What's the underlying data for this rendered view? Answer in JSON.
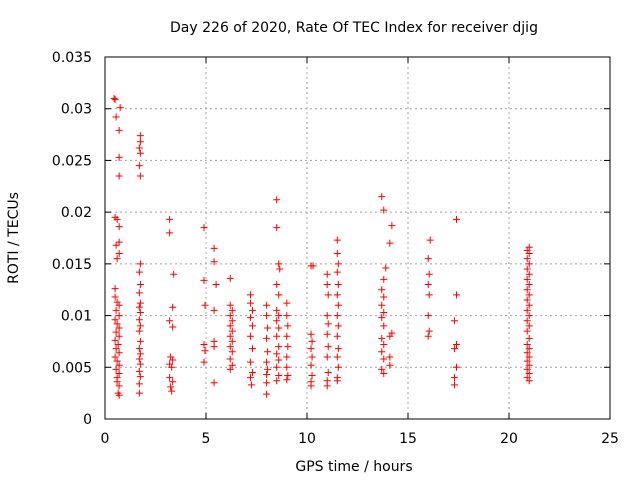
{
  "chart_data": {
    "type": "scatter",
    "title": "Day 226 of 2020, Rate Of TEC Index for receiver djig",
    "xlabel": "GPS time / hours",
    "ylabel": "ROTI / TECUs",
    "xlim": [
      0,
      25
    ],
    "ylim": [
      0,
      0.035
    ],
    "xticks": [
      0,
      5,
      10,
      15,
      20,
      25
    ],
    "xtick_labels": [
      "0",
      "5",
      "10",
      "15",
      "20",
      "25"
    ],
    "yticks": [
      0,
      0.005,
      0.01,
      0.015,
      0.02,
      0.025,
      0.03,
      0.035
    ],
    "ytick_labels": [
      "0",
      "0.005",
      "0.01",
      "0.015",
      "0.02",
      "0.025",
      "0.03",
      "0.035"
    ],
    "grid": true,
    "marker": "plus",
    "color": "#ff0000",
    "series": [
      {
        "name": "ROTI",
        "points": [
          [
            0.45,
            0.031
          ],
          [
            0.5,
            0.0309
          ],
          [
            0.55,
            0.0292
          ],
          [
            0.75,
            0.0301
          ],
          [
            0.7,
            0.0279
          ],
          [
            0.7,
            0.0253
          ],
          [
            0.7,
            0.0235
          ],
          [
            0.5,
            0.0195
          ],
          [
            0.6,
            0.0193
          ],
          [
            0.7,
            0.0186
          ],
          [
            0.55,
            0.0168
          ],
          [
            0.7,
            0.0171
          ],
          [
            0.7,
            0.016
          ],
          [
            0.6,
            0.0155
          ],
          [
            0.5,
            0.0126
          ],
          [
            0.5,
            0.0118
          ],
          [
            0.6,
            0.0113
          ],
          [
            0.7,
            0.011
          ],
          [
            0.55,
            0.0105
          ],
          [
            0.7,
            0.01
          ],
          [
            0.5,
            0.0096
          ],
          [
            0.6,
            0.0092
          ],
          [
            0.7,
            0.0088
          ],
          [
            0.55,
            0.0084
          ],
          [
            0.7,
            0.008
          ],
          [
            0.5,
            0.0076
          ],
          [
            0.65,
            0.0072
          ],
          [
            0.55,
            0.0068
          ],
          [
            0.7,
            0.0064
          ],
          [
            0.5,
            0.006
          ],
          [
            0.6,
            0.0056
          ],
          [
            0.7,
            0.0052
          ],
          [
            0.55,
            0.0048
          ],
          [
            0.7,
            0.0044
          ],
          [
            0.6,
            0.004
          ],
          [
            0.6,
            0.0036
          ],
          [
            0.7,
            0.0032
          ],
          [
            0.65,
            0.0025
          ],
          [
            0.7,
            0.0023
          ],
          [
            1.75,
            0.0274
          ],
          [
            1.75,
            0.0268
          ],
          [
            1.7,
            0.0262
          ],
          [
            1.75,
            0.0257
          ],
          [
            1.7,
            0.0245
          ],
          [
            1.75,
            0.0235
          ],
          [
            1.75,
            0.015
          ],
          [
            1.7,
            0.0142
          ],
          [
            1.75,
            0.013
          ],
          [
            1.7,
            0.0122
          ],
          [
            1.75,
            0.0112
          ],
          [
            1.7,
            0.0108
          ],
          [
            1.75,
            0.0103
          ],
          [
            1.7,
            0.0096
          ],
          [
            1.75,
            0.009
          ],
          [
            1.7,
            0.0085
          ],
          [
            1.75,
            0.0075
          ],
          [
            1.7,
            0.0068
          ],
          [
            1.75,
            0.0063
          ],
          [
            1.7,
            0.0058
          ],
          [
            1.75,
            0.0053
          ],
          [
            1.7,
            0.0046
          ],
          [
            1.75,
            0.0041
          ],
          [
            1.7,
            0.0034
          ],
          [
            1.7,
            0.0025
          ],
          [
            3.2,
            0.0193
          ],
          [
            3.2,
            0.018
          ],
          [
            3.4,
            0.014
          ],
          [
            3.35,
            0.0108
          ],
          [
            3.2,
            0.0095
          ],
          [
            3.35,
            0.0089
          ],
          [
            3.25,
            0.006
          ],
          [
            3.35,
            0.0057
          ],
          [
            3.2,
            0.0053
          ],
          [
            3.3,
            0.005
          ],
          [
            3.2,
            0.004
          ],
          [
            3.35,
            0.0036
          ],
          [
            3.25,
            0.0031
          ],
          [
            3.3,
            0.0027
          ],
          [
            4.9,
            0.0185
          ],
          [
            4.9,
            0.0134
          ],
          [
            4.95,
            0.011
          ],
          [
            4.9,
            0.0072
          ],
          [
            4.95,
            0.0066
          ],
          [
            4.9,
            0.0055
          ],
          [
            5.4,
            0.0165
          ],
          [
            5.4,
            0.0152
          ],
          [
            5.5,
            0.013
          ],
          [
            5.4,
            0.0105
          ],
          [
            5.4,
            0.0075
          ],
          [
            5.4,
            0.007
          ],
          [
            5.4,
            0.0035
          ],
          [
            6.2,
            0.0136
          ],
          [
            6.2,
            0.011
          ],
          [
            6.3,
            0.0105
          ],
          [
            6.2,
            0.01
          ],
          [
            6.3,
            0.0095
          ],
          [
            6.2,
            0.009
          ],
          [
            6.3,
            0.0085
          ],
          [
            6.2,
            0.008
          ],
          [
            6.3,
            0.0075
          ],
          [
            6.2,
            0.007
          ],
          [
            6.3,
            0.0065
          ],
          [
            6.2,
            0.0058
          ],
          [
            6.3,
            0.0052
          ],
          [
            6.2,
            0.0048
          ],
          [
            7.2,
            0.012
          ],
          [
            7.2,
            0.0112
          ],
          [
            7.3,
            0.0105
          ],
          [
            7.2,
            0.0098
          ],
          [
            7.3,
            0.009
          ],
          [
            7.2,
            0.008
          ],
          [
            7.3,
            0.0068
          ],
          [
            7.2,
            0.0055
          ],
          [
            7.3,
            0.0045
          ],
          [
            7.2,
            0.004
          ],
          [
            7.25,
            0.0033
          ],
          [
            8.0,
            0.011
          ],
          [
            8.0,
            0.01
          ],
          [
            8.05,
            0.0088
          ],
          [
            8.0,
            0.0078
          ],
          [
            8.05,
            0.0065
          ],
          [
            8.0,
            0.0055
          ],
          [
            8.05,
            0.0048
          ],
          [
            8.0,
            0.0043
          ],
          [
            8.0,
            0.0035
          ],
          [
            8.0,
            0.0024
          ],
          [
            8.5,
            0.0212
          ],
          [
            8.5,
            0.0185
          ],
          [
            8.6,
            0.015
          ],
          [
            8.65,
            0.0145
          ],
          [
            8.5,
            0.013
          ],
          [
            8.6,
            0.012
          ],
          [
            8.5,
            0.0105
          ],
          [
            8.6,
            0.01
          ],
          [
            8.5,
            0.0095
          ],
          [
            8.6,
            0.0088
          ],
          [
            8.5,
            0.008
          ],
          [
            8.6,
            0.007
          ],
          [
            8.5,
            0.0063
          ],
          [
            8.6,
            0.0057
          ],
          [
            8.5,
            0.005
          ],
          [
            8.6,
            0.0042
          ],
          [
            8.5,
            0.0037
          ],
          [
            9.0,
            0.0112
          ],
          [
            9.0,
            0.01
          ],
          [
            9.05,
            0.009
          ],
          [
            9.0,
            0.008
          ],
          [
            9.05,
            0.007
          ],
          [
            9.0,
            0.006
          ],
          [
            9.0,
            0.005
          ],
          [
            9.05,
            0.0042
          ],
          [
            9.0,
            0.0038
          ],
          [
            10.2,
            0.0148
          ],
          [
            10.3,
            0.0148
          ],
          [
            10.2,
            0.0082
          ],
          [
            10.25,
            0.0075
          ],
          [
            10.2,
            0.0068
          ],
          [
            10.25,
            0.006
          ],
          [
            10.2,
            0.0052
          ],
          [
            10.25,
            0.0042
          ],
          [
            10.2,
            0.0036
          ],
          [
            10.2,
            0.0032
          ],
          [
            11.0,
            0.014
          ],
          [
            11.0,
            0.013
          ],
          [
            11.05,
            0.012
          ],
          [
            11.0,
            0.01
          ],
          [
            11.05,
            0.0092
          ],
          [
            11.0,
            0.0082
          ],
          [
            11.05,
            0.007
          ],
          [
            11.0,
            0.006
          ],
          [
            11.05,
            0.0045
          ],
          [
            11.0,
            0.0037
          ],
          [
            11.0,
            0.0032
          ],
          [
            11.5,
            0.0173
          ],
          [
            11.5,
            0.016
          ],
          [
            11.55,
            0.015
          ],
          [
            11.5,
            0.0142
          ],
          [
            11.55,
            0.013
          ],
          [
            11.5,
            0.012
          ],
          [
            11.55,
            0.011
          ],
          [
            11.5,
            0.01
          ],
          [
            11.55,
            0.009
          ],
          [
            11.5,
            0.008
          ],
          [
            11.55,
            0.0068
          ],
          [
            11.5,
            0.006
          ],
          [
            11.55,
            0.005
          ],
          [
            11.5,
            0.004
          ],
          [
            11.5,
            0.0037
          ],
          [
            13.7,
            0.0215
          ],
          [
            13.8,
            0.0202
          ],
          [
            14.2,
            0.0187
          ],
          [
            14.1,
            0.017
          ],
          [
            13.9,
            0.0146
          ],
          [
            13.8,
            0.0135
          ],
          [
            13.7,
            0.0125
          ],
          [
            13.8,
            0.0118
          ],
          [
            13.7,
            0.011
          ],
          [
            13.8,
            0.0103
          ],
          [
            13.7,
            0.0098
          ],
          [
            13.8,
            0.009
          ],
          [
            14.2,
            0.0083
          ],
          [
            13.7,
            0.0078
          ],
          [
            13.8,
            0.0072
          ],
          [
            13.7,
            0.0065
          ],
          [
            13.8,
            0.0058
          ],
          [
            14.1,
            0.0052
          ],
          [
            13.7,
            0.0048
          ],
          [
            13.8,
            0.0044
          ],
          [
            14.1,
            0.008
          ],
          [
            14.1,
            0.006
          ],
          [
            16.1,
            0.0173
          ],
          [
            16.0,
            0.0155
          ],
          [
            16.05,
            0.014
          ],
          [
            16.0,
            0.013
          ],
          [
            16.05,
            0.012
          ],
          [
            16.0,
            0.01
          ],
          [
            16.05,
            0.0085
          ],
          [
            16.0,
            0.008
          ],
          [
            17.4,
            0.0193
          ],
          [
            17.4,
            0.012
          ],
          [
            17.3,
            0.0095
          ],
          [
            17.4,
            0.0072
          ],
          [
            17.3,
            0.0068
          ],
          [
            17.4,
            0.005
          ],
          [
            17.3,
            0.004
          ],
          [
            17.3,
            0.0033
          ],
          [
            21.0,
            0.0166
          ],
          [
            20.9,
            0.0163
          ],
          [
            21.0,
            0.016
          ],
          [
            20.9,
            0.0155
          ],
          [
            21.0,
            0.015
          ],
          [
            20.9,
            0.0145
          ],
          [
            21.0,
            0.014
          ],
          [
            20.9,
            0.0135
          ],
          [
            21.0,
            0.013
          ],
          [
            20.9,
            0.0125
          ],
          [
            21.0,
            0.012
          ],
          [
            20.9,
            0.0115
          ],
          [
            21.0,
            0.011
          ],
          [
            20.9,
            0.0105
          ],
          [
            21.0,
            0.01
          ],
          [
            20.9,
            0.0095
          ],
          [
            21.0,
            0.009
          ],
          [
            20.9,
            0.0085
          ],
          [
            21.0,
            0.0078
          ],
          [
            20.9,
            0.0072
          ],
          [
            21.0,
            0.0068
          ],
          [
            20.9,
            0.0064
          ],
          [
            21.0,
            0.006
          ],
          [
            20.9,
            0.0056
          ],
          [
            21.0,
            0.0052
          ],
          [
            20.9,
            0.0048
          ],
          [
            21.0,
            0.0044
          ],
          [
            20.9,
            0.004
          ],
          [
            21.0,
            0.0037
          ]
        ]
      }
    ]
  }
}
